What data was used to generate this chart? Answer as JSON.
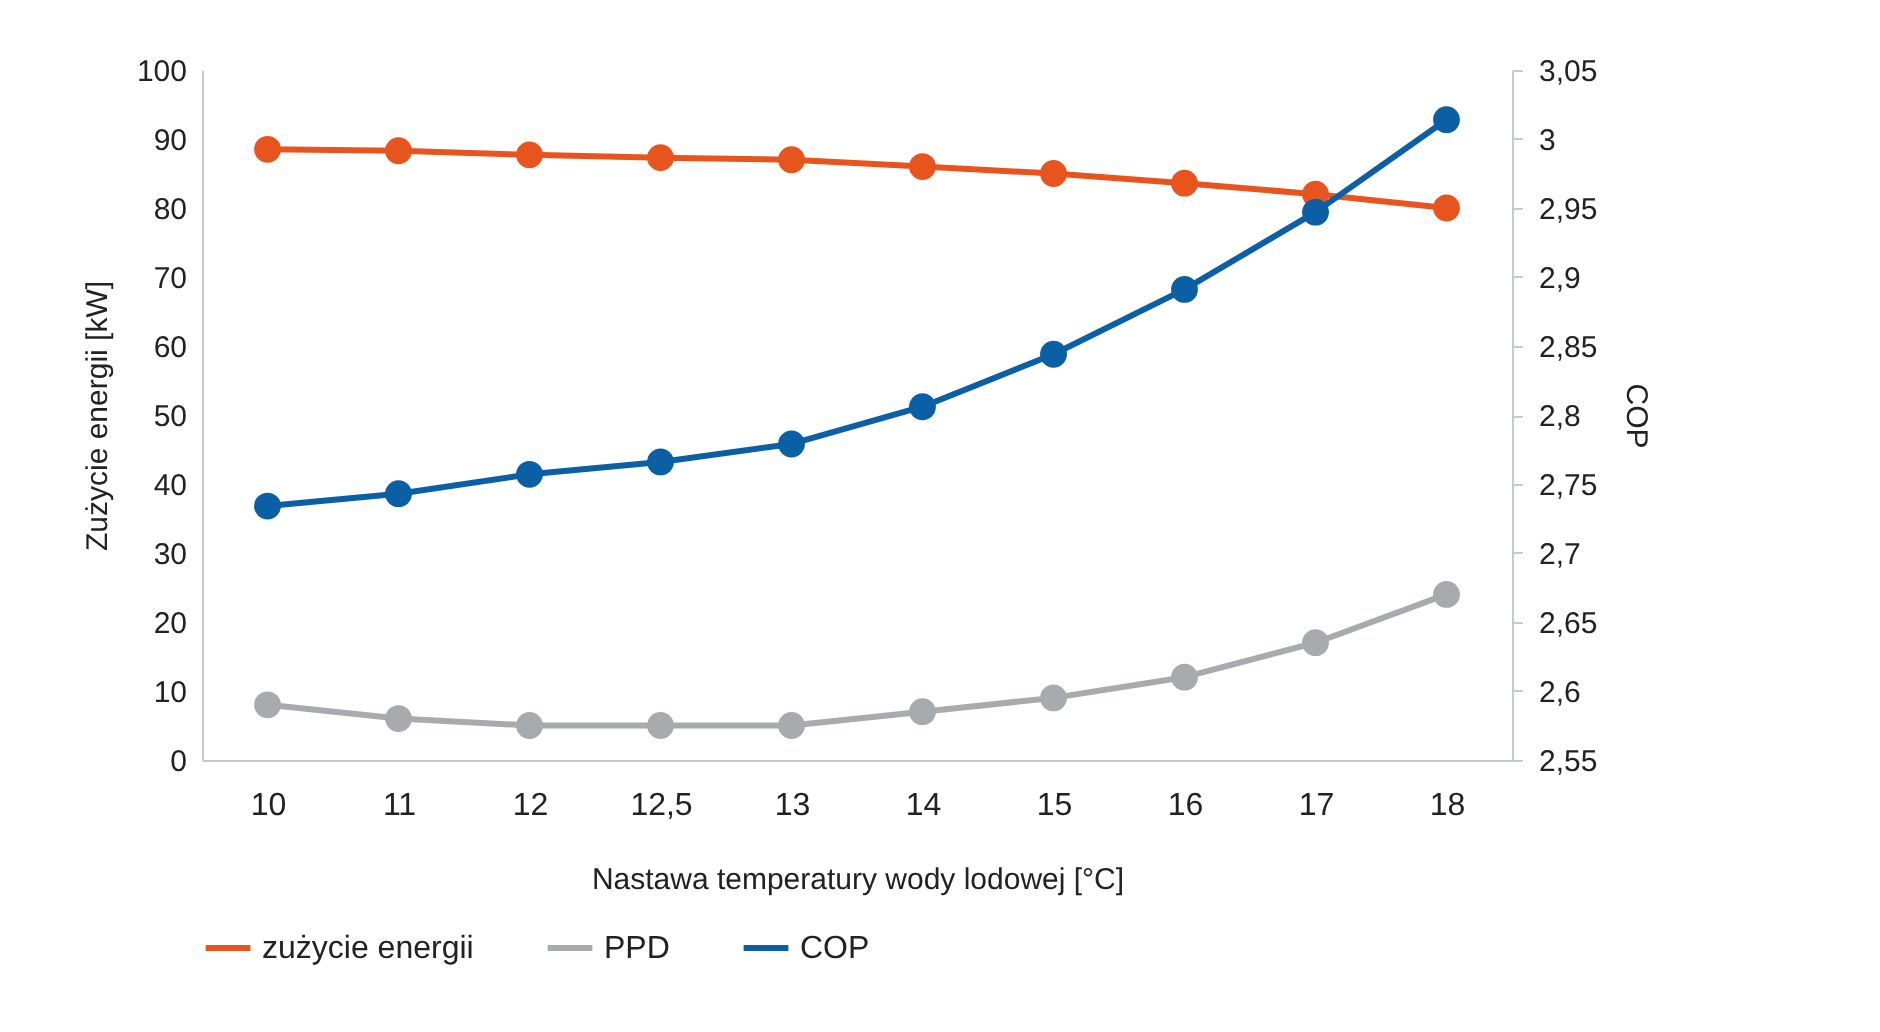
{
  "chart_data": {
    "type": "line",
    "xlabel": "Nastawa temperatury wody lodowej [°C]",
    "ylabel": "Zużycie energii [kW]",
    "y2label": "COP",
    "categories": [
      "10",
      "11",
      "12",
      "12,5",
      "13",
      "14",
      "15",
      "16",
      "17",
      "18"
    ],
    "series": [
      {
        "name": "zużycie energii",
        "color": "#e8541e",
        "values": [
          88.5,
          88.3,
          87.7,
          87.3,
          87,
          86,
          85,
          83.6,
          82,
          80
        ]
      },
      {
        "name": "PPD",
        "color": "#a7abad",
        "values": [
          8,
          6,
          5,
          5,
          5,
          7,
          9,
          12,
          17,
          24
        ]
      },
      {
        "name": "COP",
        "color": "#0b5fa5",
        "axis": "y2",
        "values": [
          2.734,
          2.743,
          2.757,
          2.766,
          2.779,
          2.806,
          2.844,
          2.891,
          2.947,
          3.014
        ]
      }
    ],
    "ylim": [
      0,
      100
    ],
    "yticks": [
      0,
      10,
      20,
      30,
      40,
      50,
      60,
      70,
      80,
      90,
      100
    ],
    "y2lim": [
      2.55,
      3.05
    ],
    "y2ticks": [
      {
        "value": 2.55,
        "label": "2,55"
      },
      {
        "value": 2.6,
        "label": "2,6"
      },
      {
        "value": 2.65,
        "label": "2,65"
      },
      {
        "value": 2.7,
        "label": "2,7"
      },
      {
        "value": 2.75,
        "label": "2,75"
      },
      {
        "value": 2.8,
        "label": "2,8"
      },
      {
        "value": 2.85,
        "label": "2,85"
      },
      {
        "value": 2.9,
        "label": "2,9"
      },
      {
        "value": 2.95,
        "label": "2,95"
      },
      {
        "value": 3,
        "label": "3"
      },
      {
        "value": 3.05,
        "label": "3,05"
      }
    ],
    "grid": false,
    "legend": "bottom",
    "marker": "circle",
    "line_style": "solid"
  }
}
